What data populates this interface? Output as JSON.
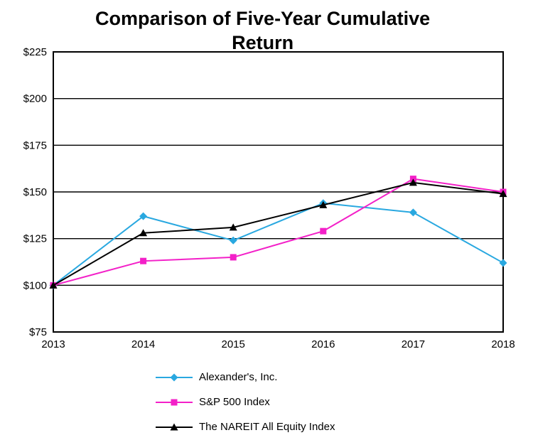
{
  "chart_data": {
    "type": "line",
    "title": "Comparison of Five-Year Cumulative Return",
    "categories": [
      "2013",
      "2014",
      "2015",
      "2016",
      "2017",
      "2018"
    ],
    "series": [
      {
        "name": "Alexander's, Inc.",
        "color": "#29a8e0",
        "marker": "diamond",
        "values": [
          100,
          137,
          124,
          144,
          139,
          112
        ]
      },
      {
        "name": "S&P 500 Index",
        "color": "#f320c8",
        "marker": "square",
        "values": [
          100,
          113,
          115,
          129,
          157,
          150
        ]
      },
      {
        "name": "The NAREIT All Equity Index",
        "color": "#000000",
        "marker": "triangle",
        "values": [
          100,
          128,
          131,
          143,
          155,
          149
        ]
      }
    ],
    "ylim": [
      75,
      225
    ],
    "yticks": [
      75,
      100,
      125,
      150,
      175,
      200,
      225
    ],
    "ytick_prefix": "$",
    "ytick_labels": [
      "$75",
      "$100",
      "$125",
      "$150",
      "$175",
      "$200",
      "$225"
    ],
    "xlabel": "",
    "ylabel": "",
    "grid": "horizontal",
    "legend_position": "bottom"
  }
}
